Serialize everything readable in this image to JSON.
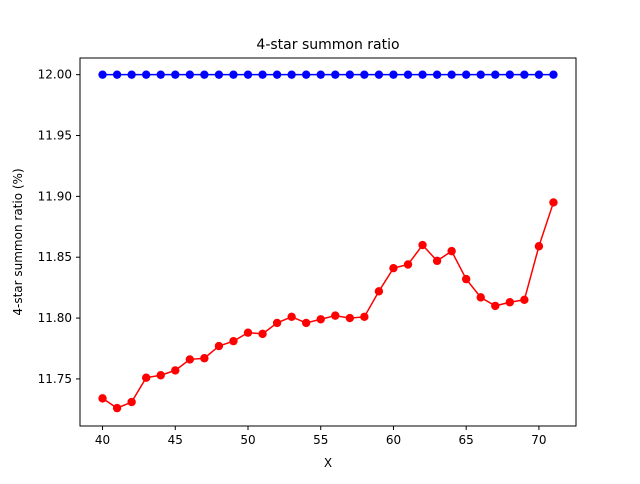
{
  "chart_data": {
    "type": "line",
    "title": "4-star summon ratio",
    "xlabel": "X",
    "ylabel": "4-star summon ratio (%)",
    "xlim": [
      38.45,
      72.55
    ],
    "ylim": [
      11.7113,
      12.0137
    ],
    "xticks": [
      40,
      45,
      50,
      55,
      60,
      65,
      70
    ],
    "yticks": [
      11.75,
      11.8,
      11.85,
      11.9,
      11.95,
      12.0
    ],
    "ytick_labels": [
      "11.75",
      "11.80",
      "11.85",
      "11.90",
      "11.95",
      "12.00"
    ],
    "grid": false,
    "x": [
      40,
      41,
      42,
      43,
      44,
      45,
      46,
      47,
      48,
      49,
      50,
      51,
      52,
      53,
      54,
      55,
      56,
      57,
      58,
      59,
      60,
      61,
      62,
      63,
      64,
      65,
      66,
      67,
      68,
      69,
      70,
      71
    ],
    "series": [
      {
        "color": "#0000ff",
        "marker": "circle",
        "values": [
          12.0,
          12.0,
          12.0,
          12.0,
          12.0,
          12.0,
          12.0,
          12.0,
          12.0,
          12.0,
          12.0,
          12.0,
          12.0,
          12.0,
          12.0,
          12.0,
          12.0,
          12.0,
          12.0,
          12.0,
          12.0,
          12.0,
          12.0,
          12.0,
          12.0,
          12.0,
          12.0,
          12.0,
          12.0,
          12.0,
          12.0,
          12.0
        ]
      },
      {
        "color": "#ff0000",
        "marker": "circle",
        "values": [
          11.734,
          11.726,
          11.731,
          11.751,
          11.753,
          11.757,
          11.766,
          11.767,
          11.777,
          11.781,
          11.788,
          11.787,
          11.796,
          11.801,
          11.796,
          11.799,
          11.802,
          11.8,
          11.801,
          11.822,
          11.841,
          11.844,
          11.86,
          11.847,
          11.855,
          11.832,
          11.817,
          11.81,
          11.813,
          11.815,
          11.859,
          11.895
        ]
      }
    ]
  }
}
